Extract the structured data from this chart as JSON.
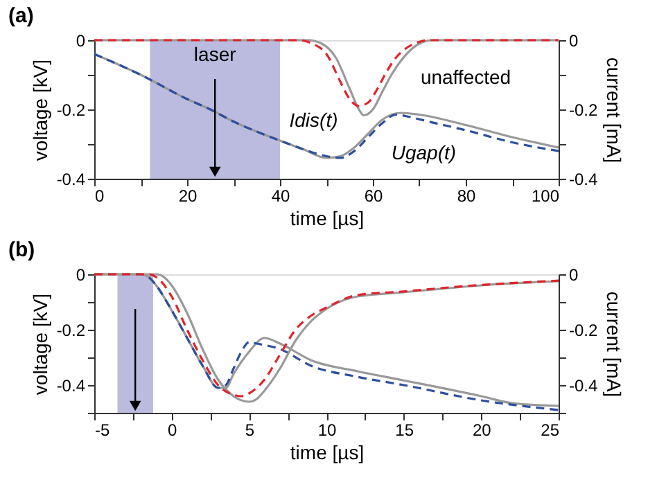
{
  "chart_data": [
    {
      "type": "line",
      "title": "(a)",
      "xlabel": "time [µs]",
      "ylabel": "voltage [kV]",
      "y2label": "current [mA]",
      "xlim": [
        0,
        100
      ],
      "xticks": [
        0,
        {
          "value": 10,
          "label": null
        },
        20,
        {
          "value": 30,
          "label": null
        },
        40,
        {
          "value": 50,
          "label": null
        },
        60,
        {
          "value": 70,
          "label": null
        },
        80,
        {
          "value": 90,
          "label": null
        },
        100
      ],
      "ylim": [
        -0.4,
        0
      ],
      "yticks": [
        -0.4,
        {
          "value": -0.3,
          "label": null
        },
        -0.2,
        {
          "value": -0.1,
          "label": null
        },
        0
      ],
      "y2lim": [
        -0.4,
        0
      ],
      "y2ticks": [
        -0.4,
        {
          "value": -0.3,
          "label": null
        },
        -0.2,
        {
          "value": -0.1,
          "label": null
        },
        0
      ],
      "grid": false,
      "series": [
        {
          "color": "#999999",
          "line_style": "solid",
          "x": [
            0,
            10,
            20,
            25,
            30,
            40,
            45,
            50,
            53,
            56,
            59,
            62,
            66,
            70,
            80,
            90,
            100
          ],
          "values": [
            -0.04,
            -0.1,
            -0.17,
            -0.2,
            -0.235,
            -0.29,
            -0.315,
            -0.34,
            -0.335,
            -0.31,
            -0.27,
            -0.23,
            -0.21,
            -0.215,
            -0.245,
            -0.28,
            -0.31
          ]
        },
        {
          "color": "#2c4fa0",
          "line_style": "dashed",
          "x": [
            0,
            10,
            20,
            25,
            30,
            40,
            45,
            50,
            53,
            56,
            59,
            62,
            65,
            68,
            72,
            80,
            90,
            100
          ],
          "values": [
            -0.04,
            -0.1,
            -0.17,
            -0.2,
            -0.235,
            -0.29,
            -0.315,
            -0.335,
            -0.34,
            -0.32,
            -0.28,
            -0.24,
            -0.215,
            -0.222,
            -0.235,
            -0.26,
            -0.295,
            -0.32
          ]
        },
        {
          "axis": "y2",
          "color": "#999999",
          "line_style": "solid",
          "x": [
            0,
            46,
            49,
            52,
            55,
            57,
            58,
            60,
            62,
            64,
            66,
            68,
            70,
            73,
            100
          ],
          "values": [
            0,
            0,
            -0.01,
            -0.05,
            -0.14,
            -0.2,
            -0.217,
            -0.2,
            -0.15,
            -0.1,
            -0.06,
            -0.03,
            -0.01,
            0,
            0
          ]
        },
        {
          "axis": "y2",
          "color": "#e0242c",
          "line_style": "dashed",
          "x": [
            0,
            44,
            47,
            50,
            53,
            55,
            57,
            59,
            61,
            63,
            65,
            67,
            70,
            72,
            100
          ],
          "values": [
            0,
            0,
            -0.01,
            -0.04,
            -0.12,
            -0.17,
            -0.19,
            -0.18,
            -0.14,
            -0.09,
            -0.05,
            -0.025,
            -0.005,
            0,
            0
          ]
        }
      ],
      "bands": [
        {
          "axis": "x",
          "from": 12,
          "to": 40,
          "label": "laser",
          "color": "#b4b4dc"
        }
      ],
      "annotations": [
        {
          "text": "unaffected",
          "x": 80,
          "y": -0.245
        },
        {
          "text": "Idis(t)",
          "x": 55,
          "y": -0.17
        },
        {
          "text": "Ugap(t)",
          "x": 62,
          "y": -0.24
        }
      ]
    },
    {
      "type": "line",
      "title": "(b)",
      "xlabel": "time [µs]",
      "ylabel": "voltage [kV]",
      "y2label": "current [mA]",
      "xlim": [
        -5,
        25
      ],
      "xticks": [
        -5,
        {
          "value": -2.5,
          "label": null
        },
        0,
        {
          "value": 2.5,
          "label": null
        },
        5,
        {
          "value": 7.5,
          "label": null
        },
        10,
        {
          "value": 12.5,
          "label": null
        },
        15,
        {
          "value": 17.5,
          "label": null
        },
        20,
        {
          "value": 22.5,
          "label": null
        },
        25
      ],
      "ylim": [
        -0.5,
        0
      ],
      "yticks": [
        {
          "value": -0.5,
          "label": null
        },
        -0.4,
        {
          "value": -0.3,
          "label": null
        },
        -0.2,
        {
          "value": -0.1,
          "label": null
        },
        0
      ],
      "y2lim": [
        -0.5,
        0
      ],
      "y2ticks": [
        {
          "value": -0.5,
          "label": null
        },
        -0.4,
        {
          "value": -0.3,
          "label": null
        },
        -0.2,
        {
          "value": -0.1,
          "label": null
        },
        0
      ],
      "grid": false,
      "series": [
        {
          "color": "#999999",
          "line_style": "solid",
          "x": [
            -5,
            -2,
            -1.5,
            -1,
            0,
            1,
            2,
            3,
            3.5,
            4,
            5,
            6,
            7,
            9,
            12,
            15,
            20,
            22,
            25
          ],
          "values": [
            0,
            0,
            -0.01,
            -0.04,
            -0.13,
            -0.23,
            -0.33,
            -0.41,
            -0.41,
            -0.36,
            -0.28,
            -0.23,
            -0.25,
            -0.31,
            -0.35,
            -0.383,
            -0.44,
            -0.465,
            -0.475
          ]
        },
        {
          "color": "#2c4fa0",
          "line_style": "dashed",
          "x": [
            -5,
            -2,
            -1.5,
            -1,
            0,
            1,
            2,
            3,
            3.5,
            4,
            4.5,
            5,
            5.5,
            7,
            9,
            12,
            15,
            20,
            25
          ],
          "values": [
            0,
            0,
            -0.01,
            -0.04,
            -0.13,
            -0.23,
            -0.33,
            -0.41,
            -0.4,
            -0.34,
            -0.28,
            -0.245,
            -0.25,
            -0.27,
            -0.33,
            -0.37,
            -0.4,
            -0.455,
            -0.49
          ]
        },
        {
          "axis": "y2",
          "color": "#999999",
          "line_style": "solid",
          "x": [
            -5,
            -1,
            -0.5,
            0,
            1,
            2,
            3,
            4,
            5,
            5.5,
            6,
            7,
            8,
            9,
            10,
            12,
            15,
            20,
            25
          ],
          "values": [
            0,
            0,
            -0.01,
            -0.04,
            -0.14,
            -0.27,
            -0.38,
            -0.44,
            -0.46,
            -0.45,
            -0.42,
            -0.34,
            -0.24,
            -0.17,
            -0.125,
            -0.08,
            -0.065,
            -0.04,
            -0.025
          ]
        },
        {
          "axis": "y2",
          "color": "#e0242c",
          "line_style": "dashed",
          "x": [
            -5,
            -1.5,
            -1,
            0,
            1,
            2,
            3,
            4,
            4.5,
            5,
            6,
            7,
            8,
            9,
            10,
            12,
            15,
            18,
            21,
            25
          ],
          "values": [
            0,
            0,
            -0.01,
            -0.08,
            -0.2,
            -0.31,
            -0.4,
            -0.435,
            -0.44,
            -0.43,
            -0.38,
            -0.29,
            -0.2,
            -0.15,
            -0.12,
            -0.075,
            -0.062,
            -0.047,
            -0.035,
            -0.023
          ]
        }
      ],
      "bands": [
        {
          "axis": "x",
          "from": -3.5,
          "to": -1.2,
          "color": "#b4b4dc"
        }
      ]
    }
  ]
}
